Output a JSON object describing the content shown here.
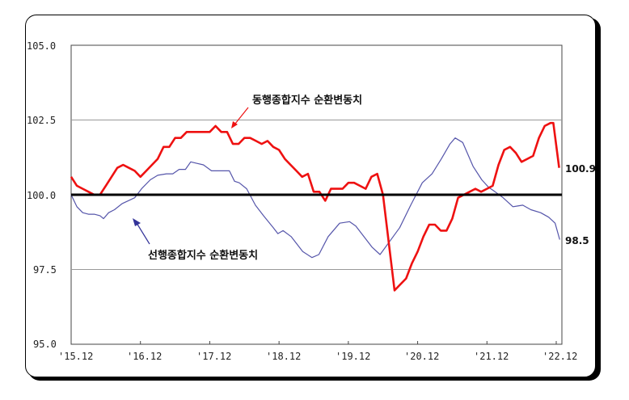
{
  "chart_data": {
    "type": "line",
    "title": "",
    "xlabel": "",
    "ylabel": "",
    "ylim": [
      95.0,
      105.0
    ],
    "yticks": [
      "105.0",
      "102.5",
      "100.0",
      "97.5",
      "95.0"
    ],
    "ytick_values": [
      105.0,
      102.5,
      100.0,
      97.5,
      95.0
    ],
    "x_tick_labels": [
      "'15.12",
      "'16.12",
      "'17.12",
      "'18.12",
      "'19.12",
      "'20.12",
      "'21.12",
      "'22.12"
    ],
    "x_tick_month_index": [
      0,
      12,
      24,
      36,
      48,
      60,
      72,
      84
    ],
    "grid": "horizontal at 102.5 and 97.5; thick baseline at 100.0",
    "legend": "none (inline annotations with arrows)",
    "series": [
      {
        "name": "동행종합지수 순환변동치",
        "color": "#ee1111",
        "annotation": "동행종합지수 순환변동치",
        "end_label": "100.9",
        "points": [
          [
            0,
            100.6
          ],
          [
            1,
            100.3
          ],
          [
            2,
            100.2
          ],
          [
            3,
            100.1
          ],
          [
            4,
            100.0
          ],
          [
            5,
            100.0
          ],
          [
            6,
            100.3
          ],
          [
            7,
            100.6
          ],
          [
            8,
            100.9
          ],
          [
            9,
            101.0
          ],
          [
            10,
            100.9
          ],
          [
            11,
            100.8
          ],
          [
            12,
            100.6
          ],
          [
            13,
            100.8
          ],
          [
            14,
            101.0
          ],
          [
            15,
            101.2
          ],
          [
            16,
            101.6
          ],
          [
            17,
            101.6
          ],
          [
            18,
            101.9
          ],
          [
            19,
            101.9
          ],
          [
            20,
            102.1
          ],
          [
            21,
            102.1
          ],
          [
            22,
            102.1
          ],
          [
            23,
            102.1
          ],
          [
            24,
            102.1
          ],
          [
            25,
            102.3
          ],
          [
            26,
            102.1
          ],
          [
            27,
            102.1
          ],
          [
            28,
            101.7
          ],
          [
            29,
            101.7
          ],
          [
            30,
            101.9
          ],
          [
            31,
            101.9
          ],
          [
            32,
            101.8
          ],
          [
            33,
            101.7
          ],
          [
            34,
            101.8
          ],
          [
            35,
            101.6
          ],
          [
            36,
            101.5
          ],
          [
            37,
            101.2
          ],
          [
            38,
            101.0
          ],
          [
            39,
            100.8
          ],
          [
            40,
            100.6
          ],
          [
            41,
            100.7
          ],
          [
            42,
            100.1
          ],
          [
            43,
            100.1
          ],
          [
            44,
            99.8
          ],
          [
            45,
            100.2
          ],
          [
            46,
            100.2
          ],
          [
            47,
            100.2
          ],
          [
            48,
            100.4
          ],
          [
            49,
            100.4
          ],
          [
            50,
            100.3
          ],
          [
            51,
            100.2
          ],
          [
            52,
            100.6
          ],
          [
            53,
            100.7
          ],
          [
            54,
            100.0
          ],
          [
            56,
            96.8
          ],
          [
            57,
            97.0
          ],
          [
            58,
            97.2
          ],
          [
            59,
            97.7
          ],
          [
            60,
            98.1
          ],
          [
            61,
            98.6
          ],
          [
            62,
            99.0
          ],
          [
            63,
            99.0
          ],
          [
            64,
            98.8
          ],
          [
            65,
            98.8
          ],
          [
            66,
            99.2
          ],
          [
            67,
            99.9
          ],
          [
            68,
            100.0
          ],
          [
            69,
            100.1
          ],
          [
            70,
            100.2
          ],
          [
            71,
            100.1
          ],
          [
            72,
            100.2
          ],
          [
            73,
            100.3
          ],
          [
            74,
            101.0
          ],
          [
            75,
            101.5
          ],
          [
            76,
            101.6
          ],
          [
            77,
            101.4
          ],
          [
            78,
            101.1
          ],
          [
            79,
            101.2
          ],
          [
            80,
            101.3
          ],
          [
            81,
            101.9
          ],
          [
            82,
            102.3
          ],
          [
            83,
            102.4
          ],
          [
            83.5,
            102.4
          ],
          [
            84.5,
            100.9
          ]
        ]
      },
      {
        "name": "선행종합지수 순환변동치",
        "color": "#5555aa",
        "annotation": "선행종합지수 순환변동치",
        "end_label": "98.5",
        "points": [
          [
            0,
            100.0
          ],
          [
            1,
            99.6
          ],
          [
            2,
            99.4
          ],
          [
            3,
            99.35
          ],
          [
            4,
            99.35
          ],
          [
            5,
            99.3
          ],
          [
            5.6,
            99.2
          ],
          [
            6.5,
            99.4
          ],
          [
            7.5,
            99.5
          ],
          [
            8.8,
            99.7
          ],
          [
            9.9,
            99.8
          ],
          [
            11,
            99.9
          ],
          [
            12.2,
            100.2
          ],
          [
            13.7,
            100.5
          ],
          [
            15,
            100.65
          ],
          [
            16.5,
            100.7
          ],
          [
            17.6,
            100.7
          ],
          [
            18.7,
            100.85
          ],
          [
            19.8,
            100.85
          ],
          [
            20.7,
            101.1
          ],
          [
            21.8,
            101.05
          ],
          [
            22.9,
            101.0
          ],
          [
            24.3,
            100.8
          ],
          [
            25.7,
            100.8
          ],
          [
            27.4,
            100.8
          ],
          [
            28.3,
            100.45
          ],
          [
            29.1,
            100.4
          ],
          [
            30.4,
            100.2
          ],
          [
            31.9,
            99.65
          ],
          [
            33.3,
            99.3
          ],
          [
            35,
            98.9
          ],
          [
            35.8,
            98.7
          ],
          [
            36.7,
            98.8
          ],
          [
            38.1,
            98.6
          ],
          [
            40.1,
            98.1
          ],
          [
            41.7,
            97.9
          ],
          [
            42.9,
            98.0
          ],
          [
            44.5,
            98.6
          ],
          [
            46.5,
            99.05
          ],
          [
            48.2,
            99.1
          ],
          [
            49.3,
            98.95
          ],
          [
            50.7,
            98.6
          ],
          [
            52.1,
            98.25
          ],
          [
            53.5,
            98.0
          ],
          [
            55.2,
            98.45
          ],
          [
            56.9,
            98.9
          ],
          [
            58.8,
            99.65
          ],
          [
            60.8,
            100.4
          ],
          [
            62.5,
            100.7
          ],
          [
            64.1,
            101.2
          ],
          [
            65.6,
            101.7
          ],
          [
            66.5,
            101.9
          ],
          [
            67.8,
            101.75
          ],
          [
            69.6,
            100.95
          ],
          [
            71.1,
            100.5
          ],
          [
            72.3,
            100.25
          ],
          [
            73.4,
            100.1
          ],
          [
            74.8,
            99.9
          ],
          [
            76.5,
            99.6
          ],
          [
            78.2,
            99.65
          ],
          [
            79.6,
            99.5
          ],
          [
            81.3,
            99.4
          ],
          [
            82.7,
            99.25
          ],
          [
            83.8,
            99.05
          ],
          [
            84.6,
            98.5
          ]
        ]
      }
    ]
  },
  "labels": {
    "coincident_annotation": "동행종합지수 순환변동치",
    "leading_annotation": "선행종합지수 순환변동치",
    "coincident_end_value": "100.9",
    "leading_end_value": "98.5"
  }
}
